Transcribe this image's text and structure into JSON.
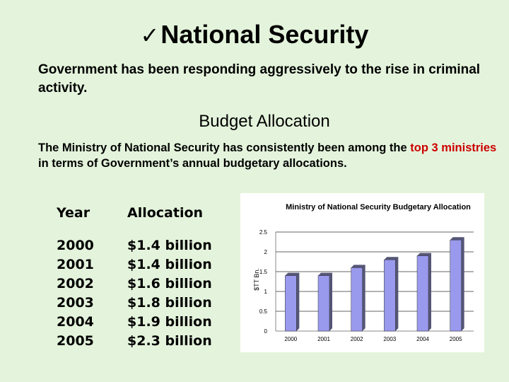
{
  "slide": {
    "check_glyph": "✓",
    "title": "National Security",
    "intro": "Government has been responding aggressively to the rise in criminal activity.",
    "subheading": "Budget Allocation",
    "para_before": "The Ministry of National Security has consistently been  among the ",
    "para_highlight": "top 3 ministries",
    "para_after": " in terms of Government’s annual budgetary allocations.",
    "highlight_color": "#cc0000"
  },
  "table": {
    "headers": [
      "Year",
      "Allocation"
    ],
    "rows": [
      {
        "year": "2000",
        "allocation": "$1.4 billion"
      },
      {
        "year": "2001",
        "allocation": "$1.4 billion"
      },
      {
        "year": "2002",
        "allocation": "$1.6 billion"
      },
      {
        "year": "2003",
        "allocation": "$1.8 billion"
      },
      {
        "year": "2004",
        "allocation": "$1.9 billion"
      },
      {
        "year": "2005",
        "allocation": "$2.3 billion"
      }
    ]
  },
  "chart_data": {
    "type": "bar",
    "title": "Ministry of National Security Budgetary Allocation",
    "ylabel": "$TT Bn.",
    "xlabel": "",
    "categories": [
      "2000",
      "2001",
      "2002",
      "2003",
      "2004",
      "2005"
    ],
    "values": [
      1.4,
      1.4,
      1.6,
      1.8,
      1.9,
      2.3
    ],
    "ylim": [
      0,
      2.5
    ],
    "yticks": [
      "0",
      "0.5",
      "1",
      "1.5",
      "2",
      "2.5"
    ],
    "grid": true,
    "legend": "none",
    "bar_color": "#9999ee",
    "bar_shadow_color": "#555577"
  }
}
